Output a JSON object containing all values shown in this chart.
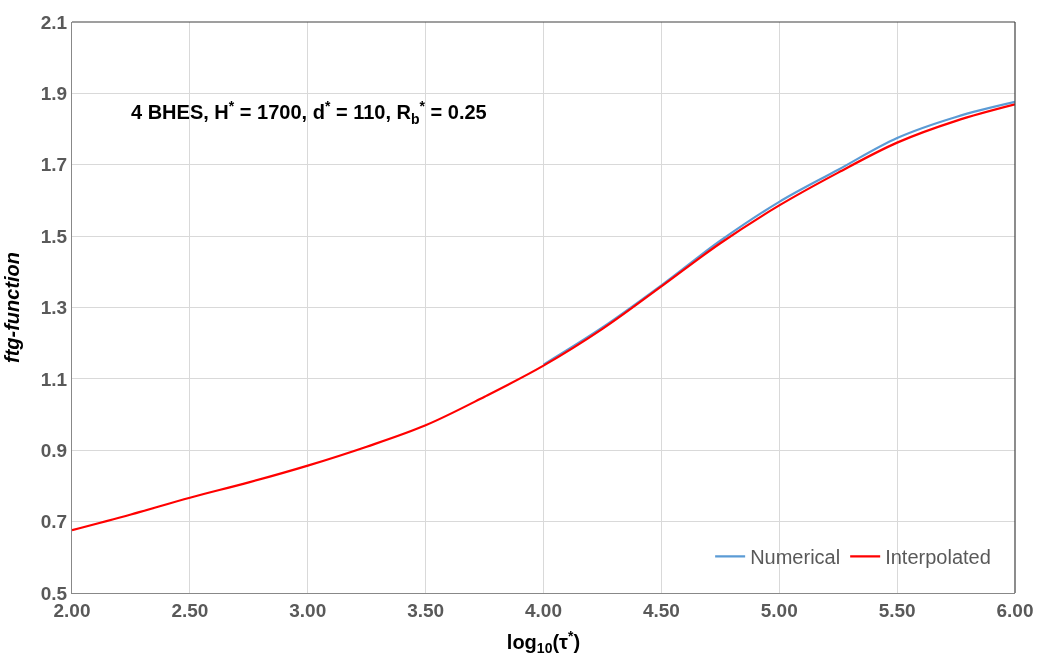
{
  "chart_data": {
    "type": "line",
    "xlabel": "log$_{10}$(τ$^{*}$)",
    "ylabel": "ftg-function",
    "annotations": [
      "4 BHES, H$^{*}$ = 1700, d$^{*}$ = 110, R$_{b}$$^{*}$ = 0.25"
    ],
    "x": [
      2.0,
      2.25,
      2.5,
      2.75,
      3.0,
      3.25,
      3.5,
      3.75,
      4.0,
      4.25,
      4.5,
      4.75,
      5.0,
      5.25,
      5.5,
      5.75,
      6.0
    ],
    "series": [
      {
        "name": "Numerical",
        "color": "#5b9bd5",
        "values": [
          null,
          null,
          null,
          null,
          null,
          null,
          null,
          null,
          1.14,
          1.244,
          1.362,
          1.487,
          1.596,
          1.686,
          1.775,
          1.834,
          1.876
        ]
      },
      {
        "name": "Interpolated",
        "color": "#ff0000",
        "values": [
          0.676,
          0.72,
          0.767,
          0.81,
          0.857,
          0.91,
          0.97,
          1.05,
          1.137,
          1.24,
          1.359,
          1.48,
          1.586,
          1.678,
          1.762,
          1.823,
          1.869
        ]
      }
    ],
    "xlim": [
      2.0,
      6.0
    ],
    "xticks": [
      {
        "value": 2.0,
        "label": "2.00"
      },
      {
        "value": 2.5,
        "label": "2.50"
      },
      {
        "value": 3.0,
        "label": "3.00"
      },
      {
        "value": 3.5,
        "label": "3.50"
      },
      {
        "value": 4.0,
        "label": "4.00"
      },
      {
        "value": 4.5,
        "label": "4.50"
      },
      {
        "value": 5.0,
        "label": "5.00"
      },
      {
        "value": 5.5,
        "label": "5.50"
      },
      {
        "value": 6.0,
        "label": "6.00"
      }
    ],
    "ylim": [
      0.5,
      2.1
    ],
    "yticks": [
      0.5,
      0.7,
      0.9,
      1.1,
      1.3,
      1.5,
      1.7,
      1.9,
      2.1
    ],
    "grid": true,
    "legend": "bottom right",
    "marker": "none",
    "line_style": "solid"
  }
}
